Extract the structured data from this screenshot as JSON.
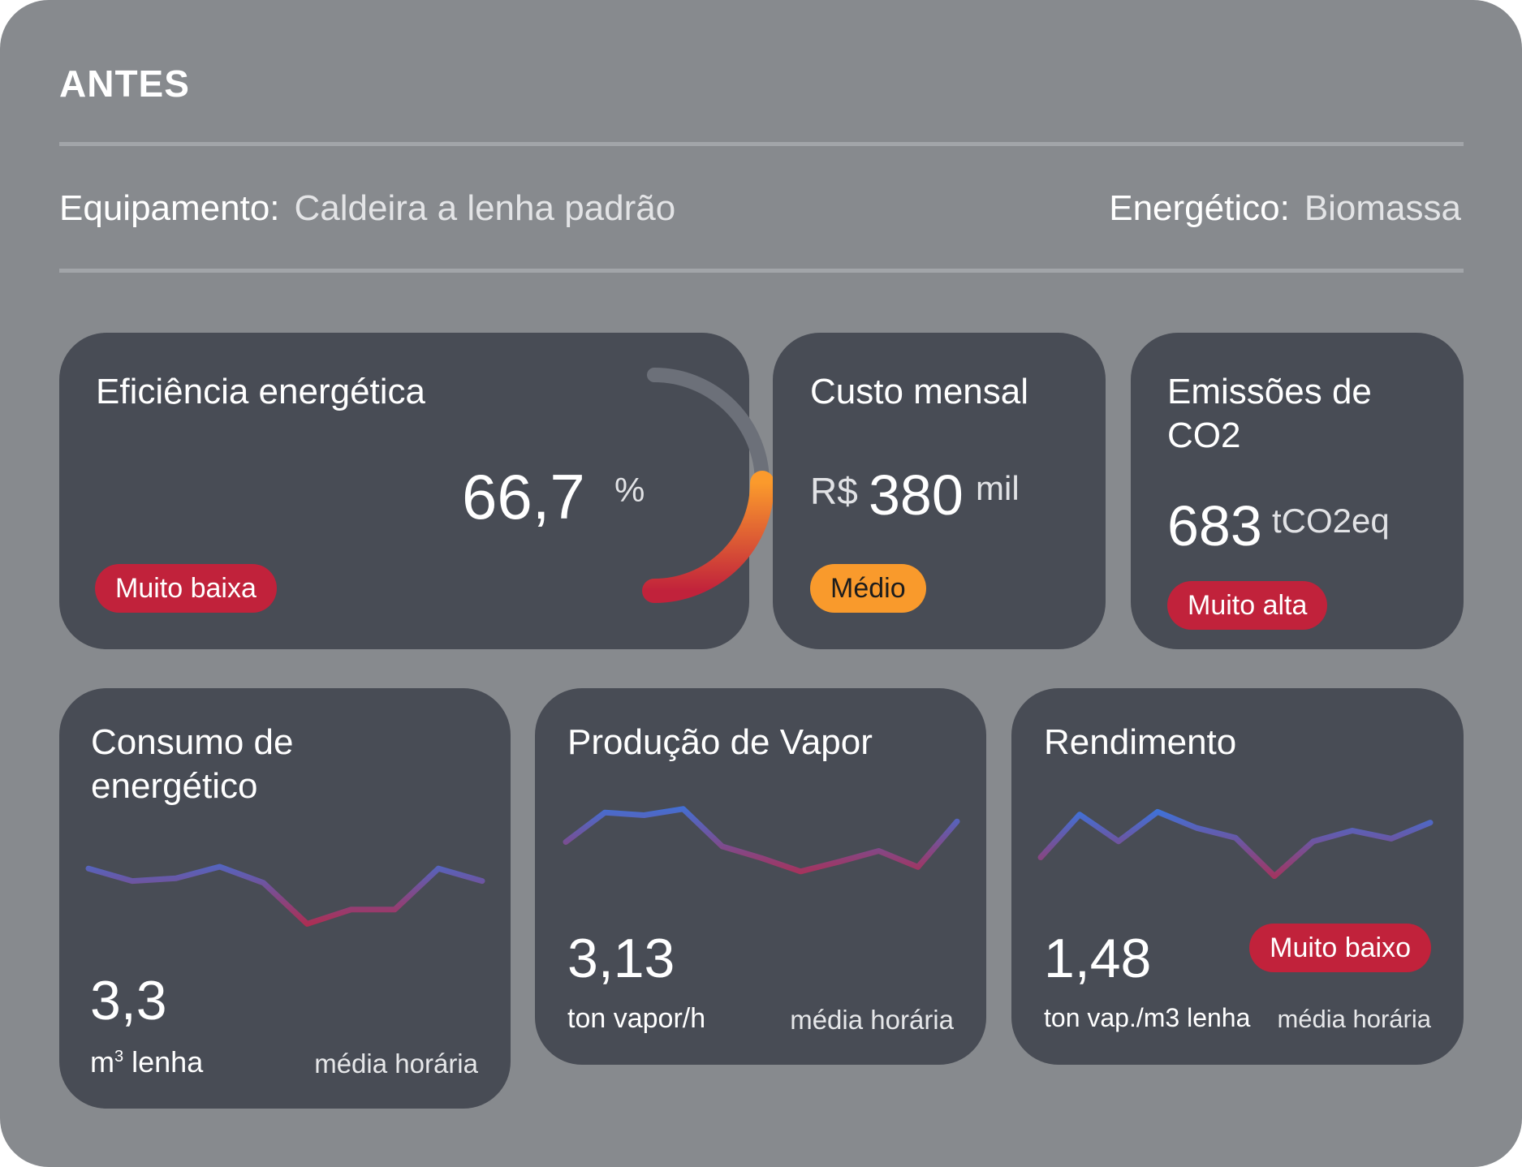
{
  "header": {
    "title": "ANTES",
    "equipment_label": "Equipamento:",
    "equipment_value": "Caldeira a lenha padrão",
    "energy_label": "Energético:",
    "energy_value": "Biomassa"
  },
  "colors": {
    "panel": "#878a8e",
    "card": "#484c55",
    "badge_red": "#c1223b",
    "badge_orange": "#f99a2c",
    "line_blue": "#3b74dd",
    "line_red": "#c1223b",
    "gauge_track": "#6c7079"
  },
  "cards": {
    "efficiency": {
      "title": "Eficiência energética",
      "value": "66,7",
      "unit": "%",
      "badge": "Muito baixa",
      "gauge_percent": 66.7
    },
    "monthly_cost": {
      "title": "Custo mensal",
      "currency": "R$",
      "value": "380",
      "unit": "mil",
      "badge": "Médio"
    },
    "emissions": {
      "title_line1": "Emissões de",
      "title_line2": "CO2",
      "value": "683",
      "unit": "tCO2eq",
      "badge": "Muito alta"
    },
    "consumption": {
      "title_line1": "Consumo de",
      "title_line2": "energético",
      "value": "3,3",
      "unit_base": "m",
      "unit_sup": "3",
      "unit_rest": " lenha",
      "note": "média horária"
    },
    "steam": {
      "title": "Produção de Vapor",
      "value": "3,13",
      "unit": "ton vapor/h",
      "note": "média horária"
    },
    "yield": {
      "title": "Rendimento",
      "value": "1,48",
      "unit": "ton vap./m3 lenha",
      "note": "média horária",
      "badge": "Muito baixo"
    }
  },
  "sparklines": {
    "consumption": [
      0.78,
      0.64,
      0.67,
      0.8,
      0.62,
      0.16,
      0.32,
      0.32,
      0.78,
      0.64
    ],
    "steam": [
      0.55,
      0.88,
      0.85,
      0.92,
      0.5,
      0.37,
      0.22,
      0.33,
      0.45,
      0.27,
      0.78
    ],
    "yield": [
      0.45,
      0.93,
      0.63,
      0.96,
      0.78,
      0.67,
      0.24,
      0.63,
      0.75,
      0.66,
      0.84
    ]
  }
}
